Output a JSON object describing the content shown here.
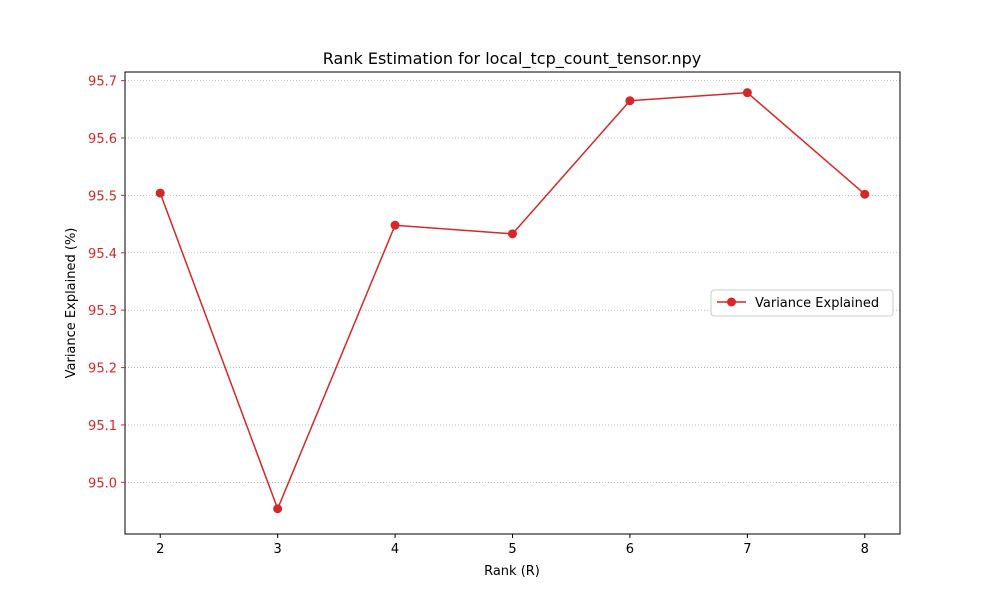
{
  "chart_data": {
    "type": "line",
    "title": "Rank Estimation for local_tcp_count_tensor.npy",
    "xlabel": "Rank (R)",
    "ylabel": "Variance Explained (%)",
    "x": [
      2,
      3,
      4,
      5,
      6,
      7,
      8
    ],
    "xticks": [
      "2",
      "3",
      "4",
      "5",
      "6",
      "7",
      "8"
    ],
    "xlim": [
      1.7,
      8.3
    ],
    "ylim": [
      94.91,
      95.715
    ],
    "yticks": [
      "95.0",
      "95.1",
      "95.2",
      "95.3",
      "95.4",
      "95.5",
      "95.6",
      "95.7"
    ],
    "ytick_values": [
      95.0,
      95.1,
      95.2,
      95.3,
      95.4,
      95.5,
      95.6,
      95.7
    ],
    "grid": "horizontal-dotted",
    "legend_position": "center-right",
    "series": [
      {
        "name": "Variance Explained",
        "color": "#d62728",
        "marker": "circle",
        "values": [
          95.504,
          94.954,
          95.448,
          95.433,
          95.665,
          95.679,
          95.502
        ]
      }
    ],
    "ylabel_color": "#d62728"
  }
}
